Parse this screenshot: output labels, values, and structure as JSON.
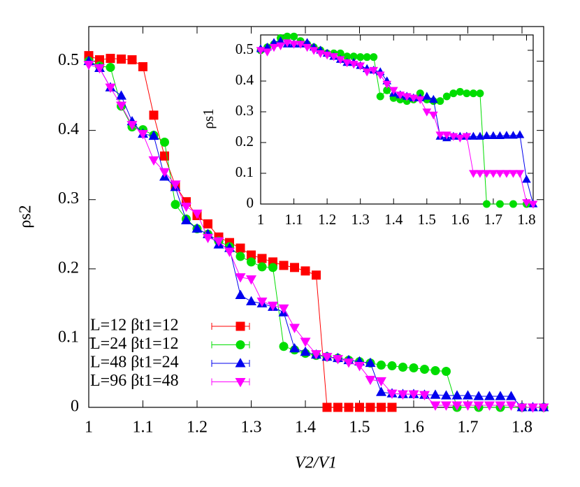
{
  "chart_data": [
    {
      "type": "line",
      "xlabel": "V2/V1",
      "ylabel": "ρs2",
      "xlim": [
        1,
        1.84
      ],
      "ylim": [
        0,
        0.55
      ],
      "xticks": [
        1,
        1.1,
        1.2,
        1.3,
        1.4,
        1.5,
        1.6,
        1.7,
        1.8
      ],
      "yticks": [
        0,
        0.1,
        0.2,
        0.3,
        0.4,
        0.5
      ],
      "legend": "lower left",
      "series": [
        {
          "name": "L=12 βt1=12",
          "color": "#ff0000",
          "marker": "square",
          "x": [
            1,
            1.02,
            1.04,
            1.06,
            1.08,
            1.1,
            1.12,
            1.14,
            1.16,
            1.18,
            1.2,
            1.22,
            1.24,
            1.26,
            1.28,
            1.3,
            1.32,
            1.34,
            1.36,
            1.38,
            1.4,
            1.42,
            1.44,
            1.46,
            1.48,
            1.5,
            1.52,
            1.54,
            1.56
          ],
          "values": [
            0.508,
            0.502,
            0.504,
            0.503,
            0.502,
            0.492,
            0.422,
            0.363,
            0.32,
            0.297,
            0.277,
            0.265,
            0.246,
            0.238,
            0.23,
            0.22,
            0.215,
            0.21,
            0.205,
            0.202,
            0.197,
            0.191,
            0,
            0,
            0,
            0,
            0,
            0,
            0
          ]
        },
        {
          "name": "L=24 βt1=12",
          "color": "#00dd00",
          "marker": "circle",
          "x": [
            1,
            1.02,
            1.04,
            1.06,
            1.08,
            1.1,
            1.12,
            1.14,
            1.16,
            1.18,
            1.2,
            1.22,
            1.24,
            1.26,
            1.28,
            1.3,
            1.32,
            1.34,
            1.36,
            1.38,
            1.4,
            1.42,
            1.44,
            1.46,
            1.48,
            1.5,
            1.52,
            1.54,
            1.56,
            1.58,
            1.6,
            1.62,
            1.64,
            1.66,
            1.68,
            1.72,
            1.76,
            1.8,
            1.84
          ],
          "values": [
            0.5,
            0.493,
            0.491,
            0.435,
            0.405,
            0.401,
            0.393,
            0.383,
            0.293,
            0.272,
            0.258,
            0.25,
            0.24,
            0.232,
            0.218,
            0.21,
            0.203,
            0.202,
            0.088,
            0.083,
            0.078,
            0.075,
            0.073,
            0.071,
            0.068,
            0.066,
            0.064,
            0.061,
            0.06,
            0.058,
            0.057,
            0.055,
            0.053,
            0.052,
            0,
            0,
            0,
            0,
            0
          ]
        },
        {
          "name": "L=48 βt1=24",
          "color": "#0000ee",
          "marker": "triangle",
          "x": [
            1,
            1.02,
            1.04,
            1.06,
            1.08,
            1.1,
            1.12,
            1.14,
            1.16,
            1.18,
            1.2,
            1.22,
            1.24,
            1.26,
            1.28,
            1.3,
            1.32,
            1.34,
            1.36,
            1.38,
            1.4,
            1.42,
            1.44,
            1.46,
            1.48,
            1.5,
            1.52,
            1.54,
            1.56,
            1.58,
            1.6,
            1.62,
            1.64,
            1.66,
            1.68,
            1.7,
            1.72,
            1.74,
            1.76,
            1.78,
            1.8,
            1.82,
            1.84
          ],
          "values": [
            0.5,
            0.49,
            0.462,
            0.45,
            0.413,
            0.395,
            0.392,
            0.333,
            0.318,
            0.27,
            0.258,
            0.25,
            0.235,
            0.23,
            0.162,
            0.153,
            0.15,
            0.145,
            0.137,
            0.085,
            0.08,
            0.076,
            0.073,
            0.071,
            0.068,
            0.066,
            0.064,
            0.022,
            0.02,
            0.019,
            0.019,
            0.018,
            0.018,
            0.017,
            0.017,
            0.017,
            0.016,
            0.016,
            0.016,
            0.016,
            0,
            0,
            0
          ]
        },
        {
          "name": "L=96 βt1=48",
          "color": "#ff00ff",
          "marker": "triangle-down",
          "x": [
            1,
            1.02,
            1.04,
            1.06,
            1.08,
            1.1,
            1.12,
            1.14,
            1.16,
            1.18,
            1.2,
            1.22,
            1.24,
            1.26,
            1.28,
            1.3,
            1.32,
            1.34,
            1.36,
            1.38,
            1.4,
            1.42,
            1.44,
            1.46,
            1.48,
            1.5,
            1.52,
            1.54,
            1.56,
            1.58,
            1.6,
            1.62,
            1.64,
            1.66,
            1.68,
            1.7,
            1.72,
            1.74,
            1.76,
            1.78,
            1.8,
            1.82,
            1.84
          ],
          "values": [
            0.495,
            0.49,
            0.462,
            0.436,
            0.408,
            0.395,
            0.357,
            0.34,
            0.322,
            0.29,
            0.28,
            0.245,
            0.24,
            0.225,
            0.188,
            0.185,
            0.153,
            0.147,
            0.143,
            0.115,
            0.095,
            0.077,
            0.073,
            0.07,
            0.065,
            0.06,
            0.04,
            0.038,
            0.02,
            0.019,
            0.019,
            0.018,
            0.003,
            0.003,
            0.003,
            0.003,
            0.003,
            0.003,
            0.003,
            0.003,
            0,
            0,
            0
          ]
        }
      ]
    },
    {
      "type": "line",
      "ylabel": "ρs1",
      "xlim": [
        1,
        1.82
      ],
      "ylim": [
        0,
        0.55
      ],
      "xticks": [
        1,
        1.1,
        1.2,
        1.3,
        1.4,
        1.5,
        1.6,
        1.7,
        1.8
      ],
      "yticks": [
        0,
        0.1,
        0.2,
        0.3,
        0.4,
        0.5
      ],
      "series": [
        {
          "color": "#00dd00",
          "marker": "circle",
          "x": [
            1,
            1.02,
            1.04,
            1.06,
            1.08,
            1.1,
            1.12,
            1.14,
            1.16,
            1.18,
            1.2,
            1.22,
            1.24,
            1.26,
            1.28,
            1.3,
            1.32,
            1.34,
            1.36,
            1.38,
            1.4,
            1.42,
            1.44,
            1.46,
            1.48,
            1.5,
            1.52,
            1.54,
            1.56,
            1.58,
            1.6,
            1.62,
            1.64,
            1.66,
            1.68,
            1.72,
            1.76,
            1.8
          ],
          "values": [
            0.5,
            0.51,
            0.52,
            0.54,
            0.545,
            0.545,
            0.53,
            0.52,
            0.51,
            0.5,
            0.49,
            0.49,
            0.49,
            0.48,
            0.48,
            0.478,
            0.478,
            0.478,
            0.35,
            0.37,
            0.345,
            0.34,
            0.335,
            0.34,
            0.36,
            0.34,
            0.335,
            0.335,
            0.35,
            0.36,
            0.365,
            0.36,
            0.36,
            0.36,
            0,
            0,
            0,
            0
          ]
        },
        {
          "color": "#0000ee",
          "marker": "triangle",
          "x": [
            1,
            1.02,
            1.04,
            1.06,
            1.08,
            1.1,
            1.12,
            1.14,
            1.16,
            1.18,
            1.2,
            1.22,
            1.24,
            1.26,
            1.28,
            1.3,
            1.32,
            1.34,
            1.36,
            1.38,
            1.4,
            1.42,
            1.44,
            1.46,
            1.48,
            1.5,
            1.52,
            1.54,
            1.56,
            1.58,
            1.6,
            1.62,
            1.64,
            1.66,
            1.68,
            1.7,
            1.72,
            1.74,
            1.76,
            1.78,
            1.8,
            1.82
          ],
          "values": [
            0.505,
            0.51,
            0.525,
            0.53,
            0.52,
            0.52,
            0.52,
            0.525,
            0.51,
            0.5,
            0.49,
            0.48,
            0.47,
            0.46,
            0.46,
            0.45,
            0.44,
            0.435,
            0.43,
            0.4,
            0.36,
            0.355,
            0.35,
            0.345,
            0.345,
            0.35,
            0.34,
            0.22,
            0.215,
            0.22,
            0.22,
            0.22,
            0.22,
            0.22,
            0.222,
            0.222,
            0.222,
            0.223,
            0.223,
            0.225,
            0.08,
            0
          ]
        },
        {
          "color": "#ff00ff",
          "marker": "triangle-down",
          "x": [
            1,
            1.02,
            1.04,
            1.06,
            1.08,
            1.1,
            1.12,
            1.14,
            1.16,
            1.18,
            1.2,
            1.22,
            1.24,
            1.26,
            1.28,
            1.3,
            1.32,
            1.34,
            1.36,
            1.38,
            1.4,
            1.42,
            1.44,
            1.46,
            1.48,
            1.5,
            1.52,
            1.54,
            1.56,
            1.58,
            1.6,
            1.62,
            1.64,
            1.66,
            1.68,
            1.7,
            1.72,
            1.74,
            1.76,
            1.78,
            1.8,
            1.82
          ],
          "values": [
            0.5,
            0.495,
            0.51,
            0.515,
            0.525,
            0.52,
            0.52,
            0.51,
            0.5,
            0.49,
            0.485,
            0.48,
            0.47,
            0.46,
            0.455,
            0.45,
            0.43,
            0.435,
            0.42,
            0.39,
            0.37,
            0.355,
            0.35,
            0.345,
            0.34,
            0.3,
            0.29,
            0.225,
            0.225,
            0.22,
            0.215,
            0.22,
            0.1,
            0.1,
            0.1,
            0.1,
            0.1,
            0.1,
            0.1,
            0.1,
            0.005,
            0
          ]
        }
      ]
    }
  ]
}
